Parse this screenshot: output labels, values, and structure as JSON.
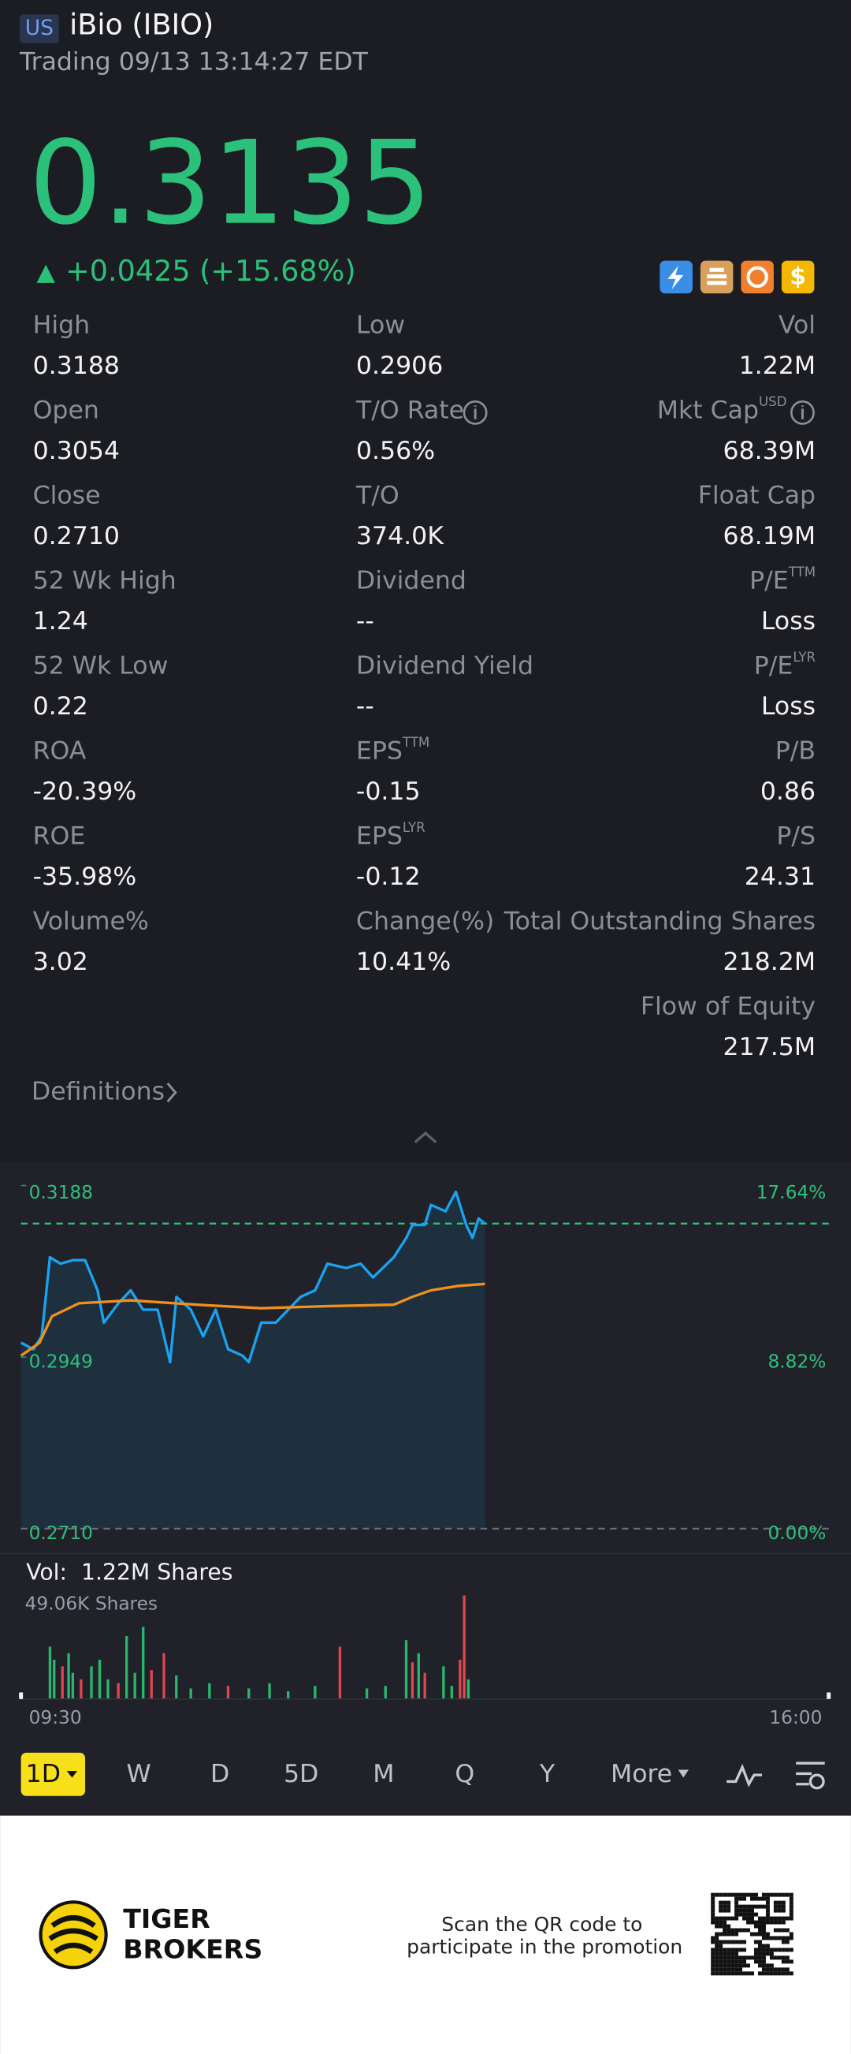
{
  "header": {
    "market": "US",
    "name": "iBio (IBIO)",
    "status": "Trading 09/13 13:14:27 EDT",
    "price": "0.3135",
    "change": "+0.0425 (+15.68%)"
  },
  "stats": {
    "left": [
      {
        "label": "High",
        "value": "0.3188"
      },
      {
        "label": "Open",
        "value": "0.3054"
      },
      {
        "label": "Close",
        "value": "0.2710"
      },
      {
        "label": "52 Wk High",
        "value": "1.24"
      },
      {
        "label": "52 Wk Low",
        "value": "0.22"
      },
      {
        "label": "ROA",
        "value": "-20.39%"
      },
      {
        "label": "ROE",
        "value": "-35.98%"
      },
      {
        "label": "Volume%",
        "value": "3.02"
      }
    ],
    "middle": [
      {
        "label": "Low",
        "value": "0.2906"
      },
      {
        "label": "T/O Rate",
        "value": "0.56%"
      },
      {
        "label": "T/O",
        "value": "374.0K"
      },
      {
        "label": "Dividend",
        "value": "--"
      },
      {
        "label": "Dividend Yield",
        "value": "--"
      },
      {
        "label": "EPS",
        "sup": "TTM",
        "value": "-0.15"
      },
      {
        "label": "EPS",
        "sup": "LYR",
        "value": "-0.12"
      },
      {
        "label": "Change(%)",
        "value": "10.41%"
      }
    ],
    "right": [
      {
        "label": "Vol",
        "value": "1.22M"
      },
      {
        "label": "Mkt Cap",
        "sup": "USD",
        "value": "68.39M"
      },
      {
        "label": "Float Cap",
        "value": "68.19M"
      },
      {
        "label": "P/E",
        "sup": "TTM",
        "value": "Loss"
      },
      {
        "label": "P/E",
        "sup": "LYR",
        "value": "Loss"
      },
      {
        "label": "P/B",
        "value": "0.86"
      },
      {
        "label": "P/S",
        "value": "24.31"
      },
      {
        "label": "Total Outstanding Shares",
        "value": "218.2M"
      },
      {
        "label": "Flow of Equity",
        "value": "217.5M"
      }
    ]
  },
  "definitions": "Definitions",
  "chart": {
    "type": "line",
    "ylim": [
      0.271,
      0.3188
    ],
    "yticks": [
      {
        "value": 0.3188,
        "label": "0.3188"
      },
      {
        "value": 0.2949,
        "label": "0.2949"
      },
      {
        "value": 0.271,
        "label": "0.2710"
      }
    ],
    "pct_labels": [
      "17.64%",
      "8.82%",
      "0.00%"
    ],
    "current_price": 0.3135,
    "times": [
      "09:30",
      "16:00"
    ],
    "price": {
      "color": "#1aa3f0",
      "times": [
        "09:30",
        "09:36",
        "09:40",
        "09:44",
        "09:49",
        "09:55",
        "10:01",
        "10:07",
        "10:10",
        "10:17",
        "10:23",
        "10:29",
        "10:36",
        "10:42",
        "10:45",
        "10:52",
        "10:58",
        "11:04",
        "11:10",
        "11:17",
        "11:20",
        "11:26",
        "11:33",
        "11:39",
        "11:45",
        "11:52",
        "11:58",
        "12:07",
        "12:14",
        "12:20",
        "12:30",
        "12:36",
        "12:39",
        "12:45",
        "12:48",
        "12:55",
        "13:00",
        "13:05",
        "13:08",
        "13:11",
        "13:14"
      ],
      "values": [
        0.2969,
        0.296,
        0.2978,
        0.3088,
        0.3079,
        0.3084,
        0.3084,
        0.3042,
        0.2997,
        0.3024,
        0.3042,
        0.3015,
        0.3015,
        0.2942,
        0.3033,
        0.3015,
        0.2978,
        0.3015,
        0.296,
        0.2951,
        0.2942,
        0.2997,
        0.2997,
        0.3015,
        0.3033,
        0.3042,
        0.3079,
        0.3073,
        0.3079,
        0.306,
        0.3088,
        0.3115,
        0.3133,
        0.3133,
        0.3161,
        0.3152,
        0.3179,
        0.3133,
        0.3115,
        0.3142,
        0.3135
      ]
    },
    "average": {
      "color": "#f0901e",
      "times": [
        "09:30",
        "09:39",
        "09:45",
        "09:58",
        "10:23",
        "10:55",
        "11:26",
        "11:58",
        "12:30",
        "12:39",
        "12:48",
        "13:01",
        "13:14"
      ],
      "values": [
        0.2951,
        0.2969,
        0.3006,
        0.3024,
        0.3028,
        0.3022,
        0.3017,
        0.302,
        0.3022,
        0.3033,
        0.3042,
        0.3048,
        0.3051
      ]
    },
    "volume": {
      "label": "Vol:",
      "total": "1.22M Shares",
      "max_label": "49.06K Shares",
      "vlim": [
        0,
        49.06
      ],
      "times": [
        "09:44",
        "09:46",
        "09:50",
        "09:53",
        "09:55",
        "09:59",
        "10:04",
        "10:08",
        "10:12",
        "10:17",
        "10:21",
        "10:25",
        "10:29",
        "10:33",
        "10:39",
        "10:45",
        "10:52",
        "11:01",
        "11:10",
        "11:20",
        "11:30",
        "11:39",
        "11:52",
        "12:04",
        "12:17",
        "12:26",
        "12:36",
        "12:39",
        "12:42",
        "12:45",
        "12:54",
        "12:58",
        "13:02",
        "13:04",
        "13:06"
      ],
      "values": [
        24.8,
        18.6,
        15.5,
        21.7,
        12.4,
        9.3,
        15.5,
        18.6,
        9.3,
        7.5,
        29.8,
        12.4,
        34.2,
        13.7,
        21.7,
        11.2,
        5.0,
        7.5,
        6.2,
        5.0,
        7.5,
        3.7,
        6.2,
        24.8,
        5.0,
        6.2,
        27.9,
        17.4,
        21.7,
        12.4,
        15.5,
        6.2,
        18.6,
        49.06,
        9.3
      ],
      "colors": [
        "#27b86e",
        "#27b86e",
        "#e0464e",
        "#27b86e",
        "#27b86e",
        "#e0464e",
        "#27b86e",
        "#27b86e",
        "#27b86e",
        "#e0464e",
        "#27b86e",
        "#27b86e",
        "#27b86e",
        "#e0464e",
        "#e0464e",
        "#27b86e",
        "#27b86e",
        "#27b86e",
        "#e0464e",
        "#27b86e",
        "#27b86e",
        "#27b86e",
        "#27b86e",
        "#e0464e",
        "#27b86e",
        "#27b86e",
        "#27b86e",
        "#e0464e",
        "#27b86e",
        "#e0464e",
        "#27b86e",
        "#27b86e",
        "#e0464e",
        "#e0464e",
        "#27b86e"
      ]
    }
  },
  "tabs": {
    "items": [
      "1D",
      "W",
      "D",
      "5D",
      "M",
      "Q",
      "Y",
      "More"
    ],
    "selected": 0
  },
  "footer": {
    "brand": [
      "TIGER",
      "BROKERS"
    ],
    "promo": [
      "Scan the QR code to",
      "participate in the promotion"
    ]
  }
}
